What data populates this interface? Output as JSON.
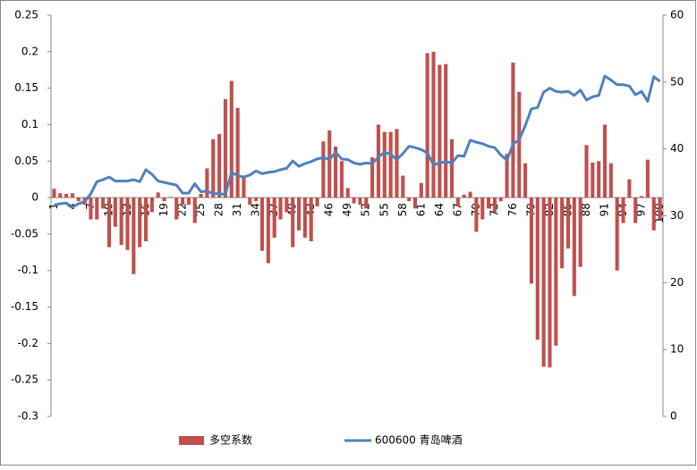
{
  "chart_data": {
    "type": "bar",
    "categories": [
      "1",
      null,
      null,
      "4",
      null,
      null,
      "7",
      null,
      null,
      "10",
      null,
      null,
      "13",
      null,
      null,
      "16",
      null,
      null,
      "19",
      null,
      null,
      "22",
      null,
      null,
      "25",
      null,
      null,
      "28",
      null,
      null,
      "31",
      null,
      null,
      "34",
      null,
      null,
      "37",
      null,
      null,
      "40",
      null,
      null,
      "43",
      null,
      null,
      "46",
      null,
      null,
      "49",
      null,
      null,
      "52",
      null,
      null,
      "55",
      null,
      null,
      "58",
      null,
      null,
      "61",
      null,
      null,
      "64",
      null,
      null,
      "67",
      null,
      null,
      "70",
      null,
      null,
      "73",
      null,
      null,
      "76",
      null,
      null,
      "79",
      null,
      null,
      "82",
      null,
      null,
      "85",
      null,
      null,
      "88",
      null,
      null,
      "91",
      null,
      null,
      "94",
      null,
      null,
      "97",
      null,
      null,
      "100"
    ],
    "series": [
      {
        "name": "多空系数",
        "type": "bar",
        "color": "#c0504d",
        "values": [
          0.012,
          0.006,
          0.005,
          0.006,
          -0.005,
          -0.01,
          -0.03,
          -0.03,
          -0.015,
          -0.068,
          -0.04,
          -0.065,
          -0.072,
          -0.105,
          -0.068,
          -0.06,
          -0.02,
          0.007,
          -0.005,
          0.001,
          -0.03,
          -0.01,
          -0.01,
          -0.035,
          0.005,
          0.04,
          0.08,
          0.087,
          0.135,
          0.16,
          0.123,
          0.03,
          -0.01,
          -0.005,
          -0.073,
          -0.09,
          -0.055,
          -0.03,
          -0.02,
          -0.068,
          -0.045,
          -0.055,
          -0.06,
          -0.012,
          0.077,
          0.092,
          0.07,
          0.05,
          0.013,
          -0.008,
          -0.01,
          -0.015,
          0.055,
          0.1,
          0.09,
          0.09,
          0.094,
          0.03,
          -0.005,
          -0.015,
          0.02,
          0.198,
          0.2,
          0.182,
          0.183,
          0.08,
          -0.012,
          0.004,
          0.008,
          -0.047,
          -0.03,
          -0.015,
          -0.02,
          -0.005,
          0.06,
          0.185,
          0.145,
          0.047,
          -0.118,
          -0.195,
          -0.232,
          -0.233,
          -0.203,
          -0.097,
          -0.07,
          -0.135,
          -0.095,
          0.072,
          0.048,
          0.05,
          0.1,
          0.047,
          -0.1,
          -0.035,
          0.025,
          -0.035,
          0.002,
          0.052,
          -0.045,
          -0.03
        ]
      },
      {
        "name": "600600 青岛啤酒",
        "type": "line",
        "axis": "y2",
        "color": "#4f81bd",
        "values": [
          31.6,
          31.8,
          31.9,
          31.3,
          31.8,
          32.1,
          33.3,
          35.1,
          35.4,
          35.8,
          35.2,
          35.2,
          35.2,
          35.4,
          35.1,
          36.9,
          36.2,
          35.2,
          35.0,
          34.8,
          34.6,
          33.4,
          33.4,
          34.8,
          33.6,
          33.7,
          33.3,
          33.3,
          33.2,
          36.5,
          36.0,
          35.8,
          36.1,
          36.7,
          36.3,
          36.5,
          36.6,
          36.9,
          37.1,
          38.2,
          37.4,
          37.8,
          38.1,
          38.5,
          38.7,
          38.4,
          39.5,
          38.5,
          38.4,
          37.9,
          37.7,
          37.9,
          37.8,
          38.8,
          39.5,
          39.2,
          38.4,
          39.3,
          40.4,
          40.2,
          39.9,
          39.4,
          37.6,
          37.9,
          38.1,
          37.9,
          39.0,
          38.9,
          41.3,
          41.0,
          40.8,
          40.4,
          40.2,
          39.1,
          38.3,
          40.7,
          41.4,
          43.5,
          46.0,
          46.2,
          48.5,
          49.1,
          48.6,
          48.5,
          48.6,
          48.0,
          48.8,
          47.3,
          47.8,
          48.0,
          50.9,
          50.3,
          49.6,
          49.6,
          49.4,
          48.1,
          48.6,
          47.1,
          50.8,
          50.1
        ]
      }
    ],
    "ylim": [
      -0.3,
      0.25
    ],
    "yticks": [
      -0.3,
      -0.25,
      -0.2,
      -0.15,
      -0.1,
      -0.05,
      0,
      0.05,
      0.1,
      0.15,
      0.2,
      0.25
    ],
    "y2lim": [
      0,
      60
    ],
    "y2ticks": [
      0,
      10,
      20,
      30,
      40,
      50,
      60
    ],
    "legend": "bottom"
  }
}
